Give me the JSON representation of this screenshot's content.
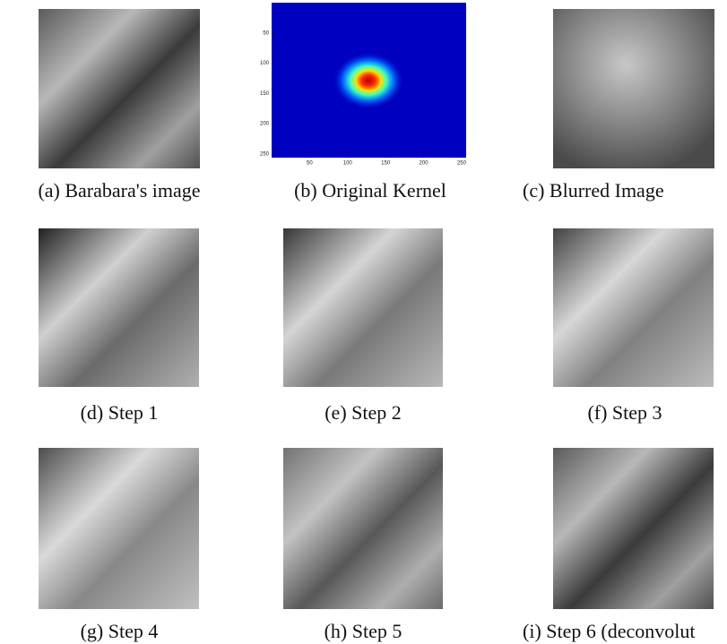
{
  "panels": [
    {
      "caption": "(a) Barabara's image"
    },
    {
      "caption": "(b) Original Kernel",
      "kernel": {
        "xlim": [
          0,
          256
        ],
        "ylim": [
          0,
          256
        ],
        "xticks": [
          50,
          100,
          150,
          200,
          250
        ],
        "yticks": [
          50,
          100,
          150,
          200,
          250
        ]
      }
    },
    {
      "caption": "(c) Blurred Image"
    },
    {
      "caption": "(d) Step 1"
    },
    {
      "caption": "(e) Step 2"
    },
    {
      "caption": "(f) Step 3"
    },
    {
      "caption": "(g) Step 4"
    },
    {
      "caption": "(h) Step 5"
    },
    {
      "caption": "(i) Step 6 (deconvolut"
    }
  ]
}
